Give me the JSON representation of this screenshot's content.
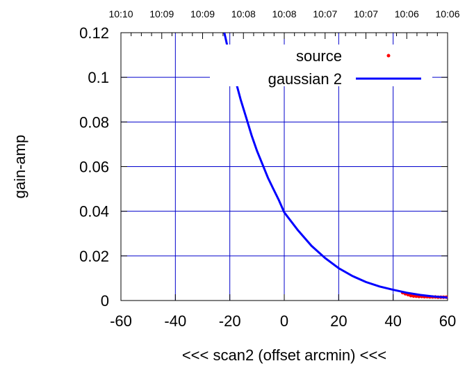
{
  "chart_data": {
    "type": "line",
    "xlabel": "<<< scan2 (offset arcmin) <<<",
    "ylabel": "gain-amp",
    "xlim": [
      -60,
      60
    ],
    "ylim": [
      0,
      0.12
    ],
    "x_ticks": [
      "-60",
      "-40",
      "-20",
      "0",
      "20",
      "40",
      "60"
    ],
    "y_ticks": [
      "0",
      "0.02",
      "0.04",
      "0.06",
      "0.08",
      "0.1",
      "0.12"
    ],
    "top_ticks": [
      "10:10",
      "10:09",
      "10:09",
      "10:08",
      "10:08",
      "10:07",
      "10:07",
      "10:06",
      "10:06"
    ],
    "grid": true,
    "legend_position": "top-right",
    "series": [
      {
        "name": "source",
        "kind": "points",
        "color": "#ff0000",
        "x": [
          43.5,
          44.5,
          45.5,
          46.5,
          47.5,
          48.5,
          49.5,
          50.5,
          51.5,
          52.5,
          53.5,
          54.5,
          55.5,
          56.5,
          57.5,
          58.5,
          59.5
        ],
        "y": [
          0.0035,
          0.003,
          0.0026,
          0.0022,
          0.002,
          0.0019,
          0.0018,
          0.0018,
          0.0017,
          0.0017,
          0.0016,
          0.0016,
          0.0016,
          0.0015,
          0.0015,
          0.0015,
          0.0015
        ]
      },
      {
        "name": "gaussian 2",
        "kind": "line",
        "color": "#0000ff",
        "x": [
          -22,
          -20,
          -18,
          -16,
          -14,
          -12,
          -10,
          -8,
          -6,
          -4,
          -2,
          0,
          5,
          10,
          15,
          20,
          25,
          30,
          35,
          40,
          45,
          50,
          55,
          60
        ],
        "y": [
          0.12,
          0.109,
          0.099,
          0.09,
          0.082,
          0.074,
          0.067,
          0.061,
          0.055,
          0.05,
          0.045,
          0.0395,
          0.0315,
          0.0245,
          0.019,
          0.0145,
          0.011,
          0.0083,
          0.0063,
          0.0048,
          0.0035,
          0.0025,
          0.0018,
          0.0013
        ]
      }
    ]
  }
}
